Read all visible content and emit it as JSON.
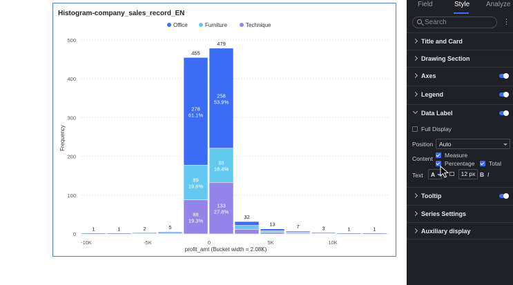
{
  "chart_data": {
    "type": "bar",
    "title": "Histogram-company_sales_record_EN",
    "xlabel": "profit_amt (Bucket width = 2.08K)",
    "ylabel": "Frequency",
    "ylim": [
      0,
      500
    ],
    "yticks": [
      "0",
      "100",
      "200",
      "300",
      "400",
      "500"
    ],
    "xticks": [
      "-10K",
      "-5K",
      "0",
      "5K",
      "10K"
    ],
    "legend_position": "top-center",
    "series": [
      {
        "name": "Office",
        "color": "#3b6cf6"
      },
      {
        "name": "Furniture",
        "color": "#62c9f1"
      },
      {
        "name": "Technique",
        "color": "#9484ea"
      }
    ],
    "bins": [
      {
        "total": 1,
        "office": 1,
        "furniture": 0,
        "technique": 0
      },
      {
        "total": 1,
        "office": 1,
        "furniture": 0,
        "technique": 0
      },
      {
        "total": 2,
        "office": 1,
        "furniture": 1,
        "technique": 0
      },
      {
        "total": 5,
        "office": 3,
        "furniture": 2,
        "technique": 0
      },
      {
        "total": 455,
        "office": 278,
        "office_pct": "61.1%",
        "furniture": 89,
        "furniture_pct": "19.6%",
        "technique": 88,
        "technique_pct": "19.3%"
      },
      {
        "total": 479,
        "office": 258,
        "office_pct": "53.9%",
        "furniture": 88,
        "furniture_pct": "18.4%",
        "technique": 133,
        "technique_pct": "27.8%"
      },
      {
        "total": 32,
        "office": 10,
        "furniture": 10,
        "technique": 12
      },
      {
        "total": 13,
        "office": 5,
        "furniture": 4,
        "technique": 4
      },
      {
        "total": 7,
        "office": 3,
        "furniture": 2,
        "technique": 2
      },
      {
        "total": 3,
        "office": 1,
        "furniture": 1,
        "technique": 1
      },
      {
        "total": 1,
        "office": 1,
        "furniture": 0,
        "technique": 0
      },
      {
        "total": 1,
        "office": 1,
        "furniture": 0,
        "technique": 0
      }
    ]
  },
  "panel": {
    "tabs": [
      "Field",
      "Style",
      "Analyze"
    ],
    "active_tab": "Style",
    "search_placeholder": "Search",
    "more_icon": "⋮",
    "sections": {
      "title_card": "Title and Card",
      "drawing_section": "Drawing Section",
      "axes": "Axes",
      "legend": "Legend",
      "data_label": "Data Label",
      "tooltip": "Tooltip",
      "series_settings": "Series Settings",
      "auxiliary_display": "Auxiliary display"
    },
    "data_label": {
      "full_display": "Full Display",
      "position_label": "Position",
      "position_value": "Auto",
      "content_label": "Content",
      "measure": "Measure",
      "percentage": "Percentage",
      "total": "Total",
      "text_label": "Text",
      "text_color_glyph": "A",
      "font_size": "12 px",
      "bold_glyph": "B",
      "italic_glyph": "I"
    }
  },
  "colors": {
    "accent": "#3b6cf6",
    "panel_bg": "#1f2127"
  }
}
